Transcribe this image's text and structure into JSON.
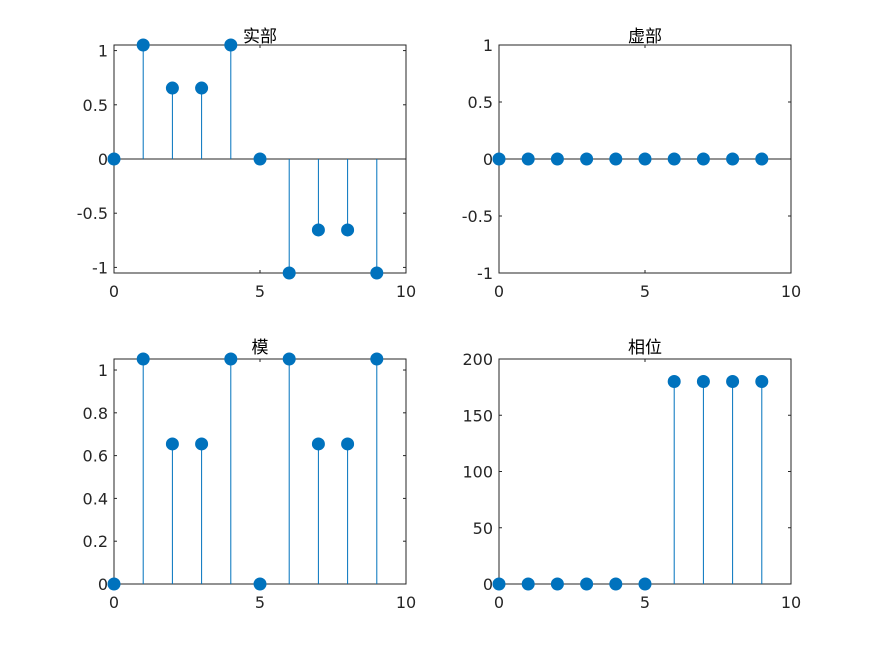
{
  "chart_data": [
    {
      "type": "stem",
      "title": "实部",
      "x": [
        0,
        1,
        2,
        3,
        4,
        5,
        6,
        7,
        8,
        9
      ],
      "values": [
        0,
        1.0515,
        0.6545,
        0.6545,
        1.0515,
        0,
        -1.0515,
        -0.6545,
        -0.6545,
        -1.0515
      ],
      "xlim": [
        0,
        10
      ],
      "ylim": [
        -1.0515,
        1.0515
      ],
      "xticks": [
        0,
        5,
        10
      ],
      "yticks": [
        -1,
        -0.5,
        0,
        0.5,
        1
      ],
      "xtick_labels": [
        "0",
        "5",
        "10"
      ],
      "ytick_labels": [
        "-1",
        "-0.5",
        "0",
        "0.5",
        "1"
      ],
      "baseline": 0,
      "color": "#0072BD"
    },
    {
      "type": "stem",
      "title": "虚部",
      "x": [
        0,
        1,
        2,
        3,
        4,
        5,
        6,
        7,
        8,
        9
      ],
      "values": [
        0,
        0,
        0,
        0,
        0,
        0,
        0,
        0,
        0,
        0
      ],
      "xlim": [
        0,
        10
      ],
      "ylim": [
        -1,
        1
      ],
      "xticks": [
        0,
        5,
        10
      ],
      "yticks": [
        -1,
        -0.5,
        0,
        0.5,
        1
      ],
      "xtick_labels": [
        "0",
        "5",
        "10"
      ],
      "ytick_labels": [
        "-1",
        "-0.5",
        "0",
        "0.5",
        "1"
      ],
      "baseline": 0,
      "color": "#0072BD"
    },
    {
      "type": "stem",
      "title": "模",
      "x": [
        0,
        1,
        2,
        3,
        4,
        5,
        6,
        7,
        8,
        9
      ],
      "values": [
        0,
        1.0515,
        0.6545,
        0.6545,
        1.0515,
        0,
        1.0515,
        0.6545,
        0.6545,
        1.0515
      ],
      "xlim": [
        0,
        10
      ],
      "ylim": [
        0,
        1.0515
      ],
      "xticks": [
        0,
        5,
        10
      ],
      "yticks": [
        0,
        0.2,
        0.4,
        0.6,
        0.8,
        1
      ],
      "xtick_labels": [
        "0",
        "5",
        "10"
      ],
      "ytick_labels": [
        "0",
        "0.2",
        "0.4",
        "0.6",
        "0.8",
        "1"
      ],
      "baseline": 0,
      "color": "#0072BD"
    },
    {
      "type": "stem",
      "title": "相位",
      "x": [
        0,
        1,
        2,
        3,
        4,
        5,
        6,
        7,
        8,
        9
      ],
      "values": [
        0,
        0,
        0,
        0,
        0,
        0,
        180,
        180,
        180,
        180
      ],
      "xlim": [
        0,
        10
      ],
      "ylim": [
        0,
        200
      ],
      "xticks": [
        0,
        5,
        10
      ],
      "yticks": [
        0,
        50,
        100,
        150,
        200
      ],
      "xtick_labels": [
        "0",
        "5",
        "10"
      ],
      "ytick_labels": [
        "0",
        "50",
        "100",
        "150",
        "200"
      ],
      "baseline": 0,
      "color": "#0072BD"
    }
  ]
}
